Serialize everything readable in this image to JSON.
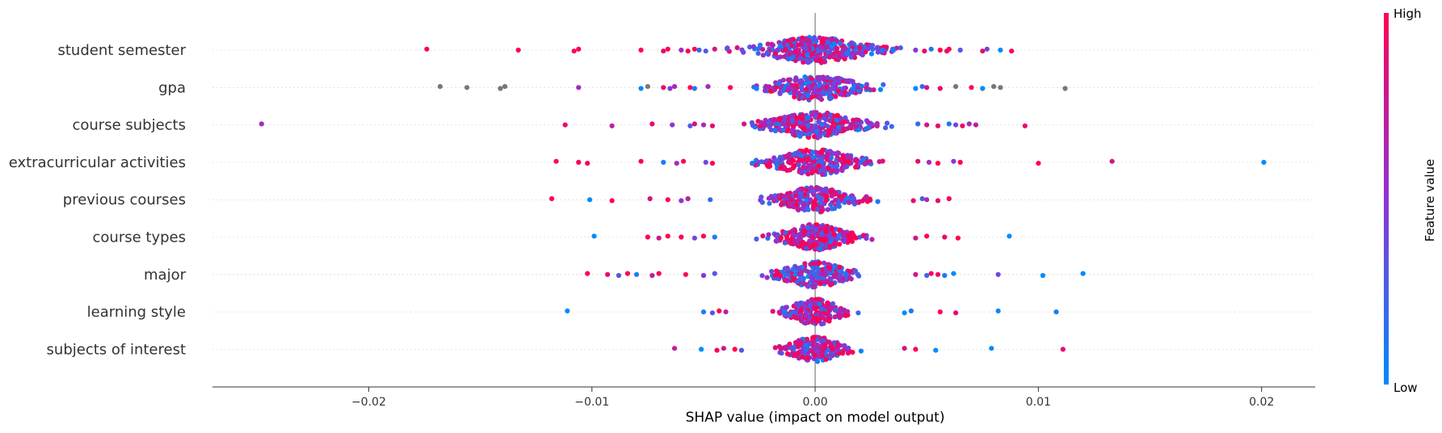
{
  "chart_data": {
    "type": "scatter",
    "subtype": "shap-beeswarm-summary",
    "title": "",
    "xlabel": "SHAP value (impact on model output)",
    "ylabel": "",
    "xlim": [
      -0.027,
      0.0224
    ],
    "x_ticks": [
      -0.02,
      -0.01,
      0.0,
      0.01,
      0.02
    ],
    "x_tick_labels": [
      "−0.02",
      "−0.01",
      "0.00",
      "0.01",
      "0.02"
    ],
    "features": [
      "student semester",
      "gpa",
      "course subjects",
      "extracurricular activities",
      "previous courses",
      "course types",
      "major",
      "learning style",
      "subjects of interest"
    ],
    "colorbar": {
      "label": "Feature value",
      "high_label": "High",
      "low_label": "Low",
      "high_color": "#ff0052",
      "low_color": "#008bfb",
      "missing_color": "#777777"
    },
    "grid": false,
    "legend": "colorbar-right",
    "outlier_points": [
      {
        "feature": "student semester",
        "points": [
          [
            -0.0174,
            1
          ],
          [
            -0.0133,
            1
          ],
          [
            -0.0108,
            1
          ],
          [
            -0.0106,
            1
          ],
          [
            -0.0078,
            1
          ],
          [
            -0.0068,
            0.9
          ],
          [
            -0.0066,
            1
          ],
          [
            -0.006,
            0.6
          ],
          [
            -0.0057,
            1
          ],
          [
            -0.0054,
            1
          ],
          [
            -0.0052,
            0.2
          ],
          [
            -0.0049,
            0.3
          ],
          [
            -0.0045,
            0.8
          ],
          [
            0.0045,
            0.5
          ],
          [
            0.0049,
            0.9
          ],
          [
            0.0052,
            0.1
          ],
          [
            0.0056,
            1
          ],
          [
            0.0059,
            0.9
          ],
          [
            0.006,
            1
          ],
          [
            0.0065,
            0.3
          ],
          [
            0.0075,
            0.9
          ],
          [
            0.0077,
            0.4
          ],
          [
            0.0083,
            0.0
          ],
          [
            0.0088,
            1
          ]
        ]
      },
      {
        "feature": "gpa",
        "points": [
          [
            -0.0168,
            null
          ],
          [
            -0.0156,
            null
          ],
          [
            -0.0141,
            null
          ],
          [
            -0.0139,
            null
          ],
          [
            -0.0106,
            0.6
          ],
          [
            -0.0078,
            0.0
          ],
          [
            -0.0075,
            null
          ],
          [
            -0.0068,
            0.9
          ],
          [
            -0.0065,
            0.5
          ],
          [
            -0.0063,
            0.6
          ],
          [
            -0.0056,
            1
          ],
          [
            -0.0054,
            0.1
          ],
          [
            -0.0048,
            0.6
          ],
          [
            -0.0038,
            1
          ],
          [
            0.0045,
            0.0
          ],
          [
            0.0048,
            0.2
          ],
          [
            0.005,
            0.8
          ],
          [
            0.0056,
            0.9
          ],
          [
            0.0063,
            null
          ],
          [
            0.007,
            1
          ],
          [
            0.0075,
            0.0
          ],
          [
            0.008,
            null
          ],
          [
            0.0083,
            null
          ],
          [
            0.0112,
            null
          ]
        ]
      },
      {
        "feature": "course subjects",
        "points": [
          [
            -0.0248,
            0.6
          ],
          [
            -0.0112,
            0.9
          ],
          [
            -0.0091,
            0.7
          ],
          [
            -0.0073,
            0.9
          ],
          [
            -0.0064,
            0.5
          ],
          [
            -0.0056,
            0.3
          ],
          [
            -0.0054,
            0.8
          ],
          [
            -0.005,
            0.6
          ],
          [
            -0.0046,
            0.9
          ],
          [
            0.0046,
            0.2
          ],
          [
            0.005,
            0.8
          ],
          [
            0.0055,
            0.9
          ],
          [
            0.006,
            0.1
          ],
          [
            0.0063,
            0.4
          ],
          [
            0.0066,
            0.9
          ],
          [
            0.0069,
            0.6
          ],
          [
            0.0072,
            0.7
          ],
          [
            0.0094,
            0.9
          ]
        ]
      },
      {
        "feature": "extracurricular activities",
        "points": [
          [
            -0.0116,
            1
          ],
          [
            -0.0106,
            1
          ],
          [
            -0.0102,
            1
          ],
          [
            -0.0078,
            1
          ],
          [
            -0.0068,
            0.1
          ],
          [
            -0.0062,
            0.6
          ],
          [
            -0.0059,
            1
          ],
          [
            -0.0049,
            0.4
          ],
          [
            -0.0046,
            1
          ],
          [
            0.0046,
            0.9
          ],
          [
            0.0051,
            0.6
          ],
          [
            0.0055,
            1
          ],
          [
            0.0062,
            0.5
          ],
          [
            0.0065,
            1
          ],
          [
            0.01,
            1
          ],
          [
            0.0133,
            0.8
          ],
          [
            0.0201,
            0.0
          ]
        ]
      },
      {
        "feature": "previous courses",
        "points": [
          [
            -0.0118,
            1
          ],
          [
            -0.0101,
            0.0
          ],
          [
            -0.0091,
            1
          ],
          [
            -0.0074,
            0.8
          ],
          [
            -0.0066,
            1
          ],
          [
            -0.006,
            0.5
          ],
          [
            -0.0057,
            0.7
          ],
          [
            -0.0047,
            0.2
          ],
          [
            0.0044,
            0.9
          ],
          [
            0.0048,
            0.3
          ],
          [
            0.005,
            0.6
          ],
          [
            0.0055,
            0.9
          ],
          [
            0.006,
            1
          ]
        ]
      },
      {
        "feature": "course types",
        "points": [
          [
            -0.0099,
            0.0
          ],
          [
            -0.0075,
            1
          ],
          [
            -0.007,
            0.8
          ],
          [
            -0.0066,
            1
          ],
          [
            -0.006,
            1
          ],
          [
            -0.0054,
            0.4
          ],
          [
            -0.005,
            1
          ],
          [
            -0.0045,
            0.1
          ],
          [
            0.0045,
            0.8
          ],
          [
            0.005,
            1
          ],
          [
            0.0058,
            0.9
          ],
          [
            0.0064,
            1
          ],
          [
            0.0087,
            0.0
          ]
        ]
      },
      {
        "feature": "major",
        "points": [
          [
            -0.0102,
            1
          ],
          [
            -0.0093,
            0.9
          ],
          [
            -0.0088,
            0.3
          ],
          [
            -0.0084,
            1
          ],
          [
            -0.008,
            0.1
          ],
          [
            -0.0073,
            0.7
          ],
          [
            -0.007,
            1
          ],
          [
            -0.0058,
            1
          ],
          [
            -0.005,
            0.5
          ],
          [
            -0.0045,
            0.3
          ],
          [
            0.0045,
            0.8
          ],
          [
            0.005,
            0.2
          ],
          [
            0.0052,
            1
          ],
          [
            0.0055,
            0.9
          ],
          [
            0.0058,
            0.1
          ],
          [
            0.0062,
            0.0
          ],
          [
            0.0082,
            0.4
          ],
          [
            0.0102,
            0.0
          ],
          [
            0.012,
            0.0
          ]
        ]
      },
      {
        "feature": "learning style",
        "points": [
          [
            -0.0111,
            0.0
          ],
          [
            -0.005,
            0.1
          ],
          [
            -0.0046,
            0.3
          ],
          [
            -0.0043,
            1
          ],
          [
            -0.004,
            0.7
          ],
          [
            0.004,
            0.0
          ],
          [
            0.0043,
            0.1
          ],
          [
            0.0056,
            1
          ],
          [
            0.0063,
            0.9
          ],
          [
            0.0082,
            0.0
          ],
          [
            0.0108,
            0.1
          ]
        ]
      },
      {
        "feature": "subjects of interest",
        "points": [
          [
            -0.0063,
            0.7
          ],
          [
            -0.0051,
            0.0
          ],
          [
            -0.0044,
            1
          ],
          [
            -0.0041,
            0.8
          ],
          [
            -0.0036,
            1
          ],
          [
            -0.0033,
            0.3
          ],
          [
            0.004,
            0.8
          ],
          [
            0.0045,
            1
          ],
          [
            0.0054,
            0.0
          ],
          [
            0.0079,
            0.0
          ],
          [
            0.0111,
            0.9
          ]
        ]
      }
    ],
    "dense_core": [
      {
        "feature": "student semester",
        "core_from": -0.0045,
        "core_to": 0.0045,
        "spread": 0.0035,
        "points": 340,
        "mean_value": 0.55
      },
      {
        "feature": "gpa",
        "core_from": -0.0036,
        "core_to": 0.0044,
        "spread": 0.0028,
        "points": 260,
        "mean_value": 0.5
      },
      {
        "feature": "course subjects",
        "core_from": -0.0046,
        "core_to": 0.0046,
        "spread": 0.003,
        "points": 300,
        "mean_value": 0.6
      },
      {
        "feature": "extracurricular activities",
        "core_from": -0.0046,
        "core_to": 0.0046,
        "spread": 0.0028,
        "points": 270,
        "mean_value": 0.6
      },
      {
        "feature": "previous courses",
        "core_from": -0.0046,
        "core_to": 0.0044,
        "spread": 0.0024,
        "points": 240,
        "mean_value": 0.6
      },
      {
        "feature": "course types",
        "core_from": -0.003,
        "core_to": 0.0045,
        "spread": 0.0022,
        "points": 260,
        "mean_value": 0.65
      },
      {
        "feature": "major",
        "core_from": -0.003,
        "core_to": 0.0045,
        "spread": 0.0022,
        "points": 220,
        "mean_value": 0.55
      },
      {
        "feature": "learning style",
        "core_from": -0.0043,
        "core_to": 0.004,
        "spread": 0.0018,
        "points": 200,
        "mean_value": 0.6
      },
      {
        "feature": "subjects of interest",
        "core_from": -0.0033,
        "core_to": 0.004,
        "spread": 0.0018,
        "points": 200,
        "mean_value": 0.6
      }
    ]
  }
}
